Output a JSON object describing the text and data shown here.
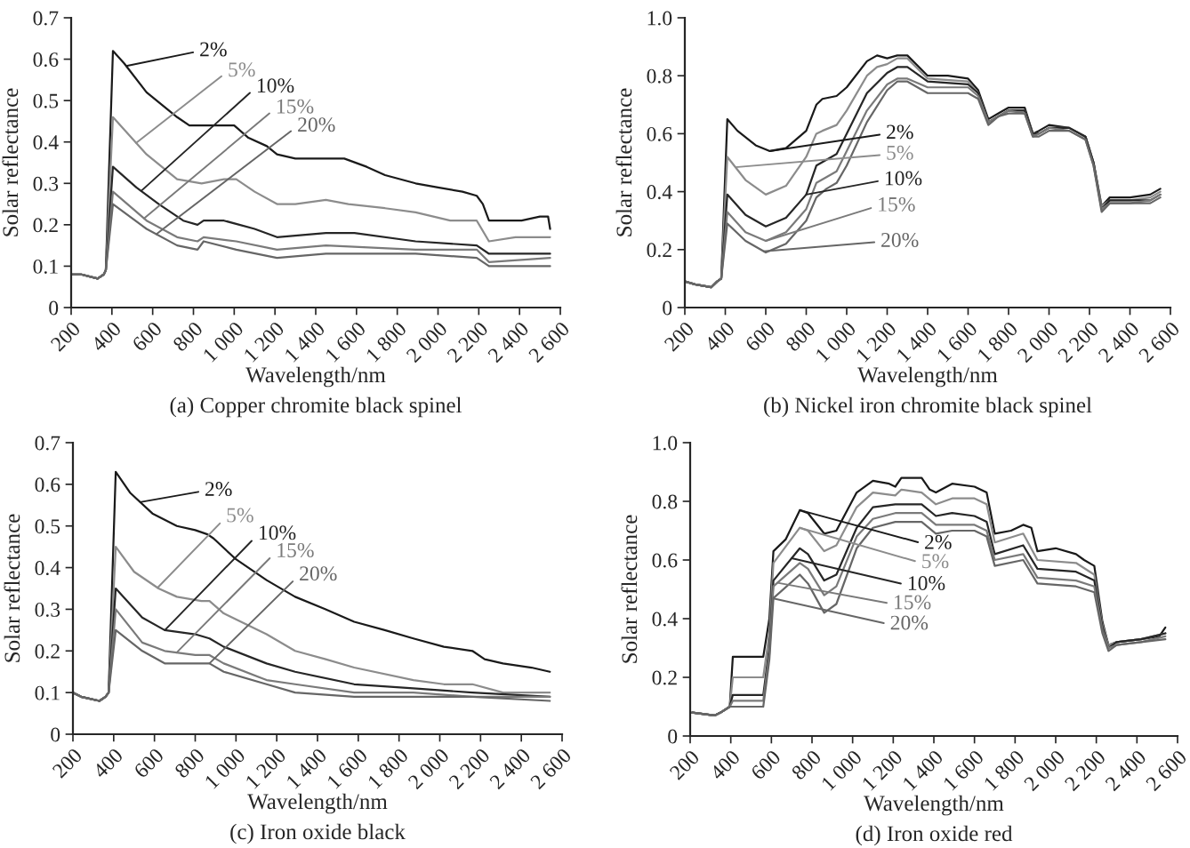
{
  "chart_data": [
    {
      "type": "line",
      "title": "(a) Copper chromite black spinel",
      "xlabel": "Wavelength/nm",
      "ylabel": "Solar reflectance",
      "xlim": [
        200,
        2600
      ],
      "xticks": [
        200,
        400,
        600,
        800,
        {
          "value": 1000,
          "label": "1 000"
        },
        {
          "value": 1200,
          "label": "1 200"
        },
        {
          "value": 1400,
          "label": "1 400"
        },
        {
          "value": 1600,
          "label": "1 600"
        },
        {
          "value": 1800,
          "label": "1 800"
        },
        {
          "value": 2000,
          "label": "2 000"
        },
        {
          "value": 2200,
          "label": "2 200"
        },
        {
          "value": 2400,
          "label": "2 400"
        },
        {
          "value": 2600,
          "label": "2 600"
        }
      ],
      "ylim": [
        0,
        0.7
      ],
      "yticks": [
        0,
        0.1,
        0.2,
        0.3,
        0.4,
        0.5,
        0.6,
        0.7
      ],
      "series": [
        {
          "name": "2%",
          "color": "#1a1a1a",
          "x": [
            200,
            250,
            330,
            360,
            370,
            405,
            460,
            570,
            720,
            780,
            840,
            920,
            1000,
            1070,
            1160,
            1210,
            1300,
            1450,
            1540,
            1650,
            1740,
            1890,
            2000,
            2120,
            2190,
            2220,
            2250,
            2320,
            2410,
            2500,
            2540,
            2550
          ],
          "values": [
            0.08,
            0.08,
            0.07,
            0.08,
            0.09,
            0.62,
            0.59,
            0.52,
            0.46,
            0.44,
            0.44,
            0.44,
            0.44,
            0.41,
            0.39,
            0.37,
            0.36,
            0.36,
            0.36,
            0.34,
            0.32,
            0.3,
            0.29,
            0.28,
            0.27,
            0.25,
            0.21,
            0.21,
            0.21,
            0.22,
            0.22,
            0.19
          ]
        },
        {
          "name": "5%",
          "color": "#8c8c8c",
          "x": [
            200,
            250,
            330,
            360,
            370,
            405,
            570,
            720,
            840,
            950,
            1010,
            1100,
            1210,
            1300,
            1450,
            1560,
            1740,
            1890,
            2060,
            2190,
            2250,
            2380,
            2550
          ],
          "values": [
            0.08,
            0.08,
            0.07,
            0.08,
            0.09,
            0.46,
            0.37,
            0.31,
            0.3,
            0.31,
            0.31,
            0.28,
            0.25,
            0.25,
            0.26,
            0.25,
            0.24,
            0.23,
            0.21,
            0.21,
            0.16,
            0.17,
            0.17
          ]
        },
        {
          "name": "10%",
          "color": "#262626",
          "x": [
            200,
            250,
            330,
            360,
            370,
            405,
            520,
            630,
            750,
            820,
            850,
            950,
            1100,
            1210,
            1450,
            1590,
            1890,
            2190,
            2250,
            2550
          ],
          "values": [
            0.08,
            0.08,
            0.07,
            0.08,
            0.09,
            0.34,
            0.29,
            0.25,
            0.21,
            0.2,
            0.21,
            0.21,
            0.19,
            0.17,
            0.18,
            0.18,
            0.16,
            0.15,
            0.13,
            0.13
          ]
        },
        {
          "name": "15%",
          "color": "#7a7a7a",
          "x": [
            200,
            250,
            330,
            360,
            370,
            405,
            570,
            720,
            820,
            850,
            1010,
            1210,
            1450,
            1890,
            2190,
            2250,
            2550
          ],
          "values": [
            0.08,
            0.08,
            0.07,
            0.08,
            0.09,
            0.28,
            0.21,
            0.17,
            0.16,
            0.17,
            0.16,
            0.14,
            0.15,
            0.14,
            0.14,
            0.11,
            0.12
          ]
        },
        {
          "name": "20%",
          "color": "#666666",
          "x": [
            200,
            250,
            330,
            360,
            370,
            405,
            570,
            720,
            820,
            850,
            1010,
            1210,
            1450,
            1890,
            2190,
            2250,
            2550
          ],
          "values": [
            0.08,
            0.08,
            0.07,
            0.08,
            0.09,
            0.25,
            0.19,
            0.15,
            0.14,
            0.16,
            0.14,
            0.12,
            0.13,
            0.13,
            0.12,
            0.1,
            0.1
          ]
        }
      ]
    },
    {
      "type": "line",
      "title": "(b) Nickel iron chromite black spinel",
      "xlabel": "Wavelength/nm",
      "ylabel": "Solar reflectance",
      "xlim": [
        200,
        2600
      ],
      "xticks": [
        200,
        400,
        600,
        800,
        {
          "value": 1000,
          "label": "1 000"
        },
        {
          "value": 1200,
          "label": "1 200"
        },
        {
          "value": 1400,
          "label": "1 400"
        },
        {
          "value": 1600,
          "label": "1 600"
        },
        {
          "value": 1800,
          "label": "1 800"
        },
        {
          "value": 2000,
          "label": "2 000"
        },
        {
          "value": 2200,
          "label": "2 200"
        },
        {
          "value": 2400,
          "label": "2 400"
        },
        {
          "value": 2600,
          "label": "2 600"
        }
      ],
      "ylim": [
        0,
        1
      ],
      "yticks": [
        0,
        0.2,
        0.4,
        0.6,
        0.8,
        {
          "value": 1,
          "label": "1.0"
        }
      ],
      "series": [
        {
          "name": "2%",
          "color": "#1a1a1a",
          "x": [
            200,
            250,
            330,
            360,
            380,
            410,
            460,
            550,
            620,
            700,
            800,
            850,
            880,
            950,
            1000,
            1100,
            1150,
            1200,
            1250,
            1300,
            1400,
            1500,
            1600,
            1650,
            1700,
            1750,
            1800,
            1880,
            1920,
            1950,
            2000,
            2100,
            2180,
            2220,
            2260,
            2300,
            2400,
            2500,
            2550
          ],
          "values": [
            0.09,
            0.08,
            0.07,
            0.09,
            0.1,
            0.65,
            0.61,
            0.56,
            0.54,
            0.55,
            0.61,
            0.7,
            0.72,
            0.73,
            0.76,
            0.85,
            0.87,
            0.86,
            0.87,
            0.87,
            0.8,
            0.8,
            0.79,
            0.75,
            0.65,
            0.67,
            0.69,
            0.69,
            0.6,
            0.61,
            0.63,
            0.62,
            0.59,
            0.5,
            0.35,
            0.38,
            0.38,
            0.39,
            0.41
          ]
        },
        {
          "name": "5%",
          "color": "#8c8c8c",
          "x": [
            200,
            250,
            330,
            360,
            380,
            410,
            500,
            600,
            700,
            800,
            850,
            880,
            950,
            1000,
            1100,
            1150,
            1200,
            1250,
            1300,
            1400,
            1600,
            1650,
            1700,
            1750,
            1800,
            1880,
            1920,
            1950,
            2000,
            2100,
            2180,
            2220,
            2260,
            2300,
            2400,
            2500,
            2550
          ],
          "values": [
            0.09,
            0.08,
            0.07,
            0.09,
            0.1,
            0.52,
            0.44,
            0.39,
            0.42,
            0.52,
            0.6,
            0.61,
            0.63,
            0.68,
            0.8,
            0.83,
            0.84,
            0.86,
            0.86,
            0.79,
            0.78,
            0.74,
            0.64,
            0.66,
            0.68,
            0.68,
            0.6,
            0.6,
            0.62,
            0.62,
            0.59,
            0.5,
            0.35,
            0.37,
            0.37,
            0.38,
            0.4
          ]
        },
        {
          "name": "10%",
          "color": "#262626",
          "x": [
            200,
            250,
            330,
            360,
            380,
            410,
            500,
            600,
            700,
            800,
            850,
            900,
            950,
            1000,
            1100,
            1200,
            1250,
            1300,
            1400,
            1600,
            1650,
            1700,
            1750,
            1800,
            1880,
            1920,
            1950,
            2000,
            2100,
            2180,
            2220,
            2260,
            2300,
            2400,
            2500,
            2550
          ],
          "values": [
            0.09,
            0.08,
            0.07,
            0.09,
            0.1,
            0.39,
            0.32,
            0.28,
            0.31,
            0.39,
            0.49,
            0.51,
            0.53,
            0.6,
            0.74,
            0.81,
            0.83,
            0.83,
            0.78,
            0.77,
            0.74,
            0.64,
            0.66,
            0.68,
            0.68,
            0.6,
            0.6,
            0.62,
            0.62,
            0.59,
            0.5,
            0.34,
            0.37,
            0.37,
            0.37,
            0.39
          ]
        },
        {
          "name": "15%",
          "color": "#7a7a7a",
          "x": [
            200,
            250,
            330,
            360,
            380,
            410,
            500,
            600,
            700,
            800,
            850,
            900,
            950,
            1000,
            1100,
            1200,
            1250,
            1300,
            1400,
            1600,
            1650,
            1700,
            1750,
            1800,
            1880,
            1920,
            1950,
            2000,
            2100,
            2180,
            2220,
            2260,
            2300,
            2400,
            2500,
            2550
          ],
          "values": [
            0.09,
            0.08,
            0.07,
            0.09,
            0.1,
            0.33,
            0.26,
            0.23,
            0.26,
            0.34,
            0.43,
            0.45,
            0.47,
            0.54,
            0.68,
            0.77,
            0.79,
            0.79,
            0.76,
            0.76,
            0.73,
            0.64,
            0.66,
            0.68,
            0.67,
            0.59,
            0.6,
            0.62,
            0.61,
            0.58,
            0.49,
            0.34,
            0.36,
            0.36,
            0.37,
            0.39
          ]
        },
        {
          "name": "20%",
          "color": "#666666",
          "x": [
            200,
            250,
            330,
            360,
            380,
            410,
            500,
            600,
            700,
            800,
            850,
            900,
            950,
            1000,
            1100,
            1200,
            1250,
            1300,
            1400,
            1600,
            1650,
            1700,
            1750,
            1800,
            1880,
            1920,
            1950,
            2000,
            2100,
            2180,
            2220,
            2260,
            2300,
            2400,
            2500,
            2550
          ],
          "values": [
            0.09,
            0.08,
            0.07,
            0.09,
            0.1,
            0.29,
            0.23,
            0.19,
            0.22,
            0.3,
            0.38,
            0.41,
            0.43,
            0.49,
            0.64,
            0.75,
            0.78,
            0.78,
            0.74,
            0.74,
            0.72,
            0.63,
            0.66,
            0.67,
            0.67,
            0.59,
            0.59,
            0.61,
            0.61,
            0.58,
            0.49,
            0.33,
            0.36,
            0.36,
            0.36,
            0.38
          ]
        }
      ]
    },
    {
      "type": "line",
      "title": "(c) Iron oxide black",
      "xlabel": "Wavelength/nm",
      "ylabel": "Solar reflectance",
      "xlim": [
        200,
        2600
      ],
      "xticks": [
        200,
        400,
        600,
        800,
        {
          "value": 1000,
          "label": "1 000"
        },
        {
          "value": 1200,
          "label": "1 200"
        },
        {
          "value": 1400,
          "label": "1 400"
        },
        {
          "value": 1600,
          "label": "1 600"
        },
        {
          "value": 1800,
          "label": "1 800"
        },
        {
          "value": 2000,
          "label": "2 000"
        },
        {
          "value": 2200,
          "label": "2 200"
        },
        {
          "value": 2400,
          "label": "2 400"
        },
        {
          "value": 2600,
          "label": "2 600"
        }
      ],
      "ylim": [
        0,
        0.7
      ],
      "yticks": [
        0,
        0.1,
        0.2,
        0.3,
        0.4,
        0.5,
        0.6,
        0.7
      ],
      "series": [
        {
          "name": "2%",
          "color": "#1a1a1a",
          "x": [
            200,
            240,
            330,
            360,
            375,
            410,
            480,
            590,
            710,
            800,
            860,
            890,
            1000,
            1150,
            1290,
            1440,
            1580,
            1730,
            1870,
            2020,
            2160,
            2220,
            2310,
            2450,
            2540
          ],
          "values": [
            0.1,
            0.09,
            0.08,
            0.09,
            0.1,
            0.63,
            0.58,
            0.53,
            0.5,
            0.49,
            0.48,
            0.47,
            0.42,
            0.37,
            0.33,
            0.3,
            0.27,
            0.25,
            0.23,
            0.21,
            0.2,
            0.18,
            0.17,
            0.16,
            0.15
          ]
        },
        {
          "name": "5%",
          "color": "#8c8c8c",
          "x": [
            200,
            240,
            330,
            360,
            375,
            410,
            500,
            620,
            710,
            830,
            870,
            940,
            1150,
            1290,
            1440,
            1580,
            1870,
            2020,
            2160,
            2310,
            2540
          ],
          "values": [
            0.1,
            0.09,
            0.08,
            0.09,
            0.1,
            0.45,
            0.39,
            0.35,
            0.33,
            0.32,
            0.32,
            0.29,
            0.24,
            0.2,
            0.18,
            0.16,
            0.13,
            0.12,
            0.12,
            0.1,
            0.1
          ]
        },
        {
          "name": "10%",
          "color": "#262626",
          "x": [
            200,
            240,
            330,
            360,
            375,
            410,
            540,
            650,
            800,
            870,
            940,
            1150,
            1290,
            1580,
            1870,
            2160,
            2540
          ],
          "values": [
            0.1,
            0.09,
            0.08,
            0.09,
            0.1,
            0.35,
            0.28,
            0.25,
            0.24,
            0.23,
            0.21,
            0.17,
            0.15,
            0.12,
            0.11,
            0.1,
            0.09
          ]
        },
        {
          "name": "15%",
          "color": "#7a7a7a",
          "x": [
            200,
            240,
            330,
            360,
            375,
            410,
            540,
            650,
            800,
            870,
            940,
            1150,
            1290,
            1580,
            1870,
            2160,
            2540
          ],
          "values": [
            0.1,
            0.09,
            0.08,
            0.09,
            0.1,
            0.3,
            0.22,
            0.2,
            0.19,
            0.19,
            0.17,
            0.13,
            0.12,
            0.1,
            0.1,
            0.09,
            0.09
          ]
        },
        {
          "name": "20%",
          "color": "#666666",
          "x": [
            200,
            240,
            330,
            360,
            375,
            410,
            540,
            650,
            800,
            870,
            940,
            1150,
            1290,
            1580,
            1870,
            2160,
            2540
          ],
          "values": [
            0.1,
            0.09,
            0.08,
            0.09,
            0.1,
            0.25,
            0.2,
            0.17,
            0.17,
            0.17,
            0.15,
            0.12,
            0.1,
            0.09,
            0.09,
            0.09,
            0.08
          ]
        }
      ]
    },
    {
      "type": "line",
      "title": "(d) Iron oxide red",
      "xlabel": "Wavelength/nm",
      "ylabel": "Solar reflectance",
      "xlim": [
        200,
        2600
      ],
      "xticks": [
        200,
        400,
        600,
        800,
        {
          "value": 1000,
          "label": "1 000"
        },
        {
          "value": 1200,
          "label": "1 200"
        },
        {
          "value": 1400,
          "label": "1 400"
        },
        {
          "value": 1600,
          "label": "1 600"
        },
        {
          "value": 1800,
          "label": "1 800"
        },
        {
          "value": 2000,
          "label": "2 000"
        },
        {
          "value": 2200,
          "label": "2 200"
        },
        {
          "value": 2400,
          "label": "2 400"
        },
        {
          "value": 2600,
          "label": "2 600"
        }
      ],
      "ylim": [
        0,
        1
      ],
      "yticks": [
        0,
        0.2,
        0.4,
        0.6,
        0.8,
        {
          "value": 1,
          "label": "1.0"
        }
      ],
      "series": [
        {
          "name": "2%",
          "color": "#1a1a1a",
          "x": [
            210,
            320,
            350,
            395,
            410,
            560,
            590,
            610,
            670,
            740,
            780,
            860,
            920,
            1020,
            1100,
            1180,
            1210,
            1240,
            1340,
            1380,
            1410,
            1490,
            1600,
            1660,
            1700,
            1780,
            1840,
            1880,
            1910,
            2000,
            2100,
            2140,
            2190,
            2230,
            2260,
            2300,
            2420,
            2510,
            2540
          ],
          "values": [
            0.08,
            0.07,
            0.08,
            0.1,
            0.27,
            0.27,
            0.4,
            0.63,
            0.67,
            0.77,
            0.76,
            0.69,
            0.7,
            0.83,
            0.87,
            0.86,
            0.85,
            0.88,
            0.88,
            0.84,
            0.83,
            0.86,
            0.85,
            0.83,
            0.69,
            0.7,
            0.72,
            0.71,
            0.63,
            0.64,
            0.62,
            0.6,
            0.58,
            0.39,
            0.31,
            0.32,
            0.33,
            0.34,
            0.37
          ]
        },
        {
          "name": "5%",
          "color": "#8c8c8c",
          "x": [
            210,
            320,
            350,
            395,
            410,
            560,
            590,
            610,
            740,
            780,
            860,
            920,
            1020,
            1100,
            1210,
            1240,
            1340,
            1410,
            1490,
            1600,
            1660,
            1700,
            1840,
            1910,
            2100,
            2190,
            2230,
            2260,
            2300,
            2420,
            2540
          ],
          "values": [
            0.08,
            0.07,
            0.08,
            0.1,
            0.2,
            0.2,
            0.35,
            0.59,
            0.71,
            0.7,
            0.63,
            0.65,
            0.78,
            0.83,
            0.82,
            0.84,
            0.83,
            0.79,
            0.81,
            0.81,
            0.79,
            0.66,
            0.69,
            0.6,
            0.59,
            0.55,
            0.38,
            0.31,
            0.32,
            0.33,
            0.35
          ]
        },
        {
          "name": "10%",
          "color": "#262626",
          "x": [
            210,
            320,
            350,
            395,
            410,
            560,
            590,
            610,
            740,
            780,
            860,
            920,
            1020,
            1100,
            1210,
            1240,
            1340,
            1410,
            1490,
            1600,
            1660,
            1700,
            1840,
            1910,
            2100,
            2190,
            2230,
            2260,
            2300,
            2420,
            2540
          ],
          "values": [
            0.08,
            0.07,
            0.08,
            0.1,
            0.14,
            0.14,
            0.3,
            0.53,
            0.64,
            0.62,
            0.53,
            0.55,
            0.71,
            0.78,
            0.79,
            0.79,
            0.79,
            0.75,
            0.76,
            0.75,
            0.73,
            0.62,
            0.65,
            0.57,
            0.56,
            0.53,
            0.37,
            0.3,
            0.32,
            0.33,
            0.35
          ]
        },
        {
          "name": "15%",
          "color": "#7a7a7a",
          "x": [
            210,
            320,
            350,
            395,
            410,
            560,
            590,
            610,
            740,
            780,
            860,
            920,
            1020,
            1100,
            1210,
            1240,
            1340,
            1410,
            1490,
            1600,
            1660,
            1700,
            1840,
            1910,
            2100,
            2190,
            2230,
            2260,
            2300,
            2420,
            2540
          ],
          "values": [
            0.08,
            0.07,
            0.08,
            0.1,
            0.12,
            0.12,
            0.28,
            0.51,
            0.59,
            0.57,
            0.48,
            0.51,
            0.68,
            0.74,
            0.76,
            0.76,
            0.76,
            0.72,
            0.72,
            0.72,
            0.7,
            0.6,
            0.62,
            0.54,
            0.53,
            0.51,
            0.36,
            0.3,
            0.31,
            0.32,
            0.34
          ]
        },
        {
          "name": "20%",
          "color": "#666666",
          "x": [
            210,
            320,
            350,
            395,
            410,
            560,
            590,
            610,
            740,
            780,
            860,
            920,
            1020,
            1100,
            1210,
            1240,
            1340,
            1410,
            1490,
            1600,
            1660,
            1700,
            1840,
            1910,
            2100,
            2190,
            2230,
            2260,
            2300,
            2420,
            2540
          ],
          "values": [
            0.08,
            0.07,
            0.08,
            0.1,
            0.1,
            0.1,
            0.26,
            0.47,
            0.55,
            0.52,
            0.42,
            0.45,
            0.64,
            0.71,
            0.73,
            0.73,
            0.73,
            0.69,
            0.7,
            0.7,
            0.68,
            0.58,
            0.6,
            0.52,
            0.51,
            0.49,
            0.35,
            0.29,
            0.31,
            0.32,
            0.33
          ]
        }
      ]
    }
  ]
}
